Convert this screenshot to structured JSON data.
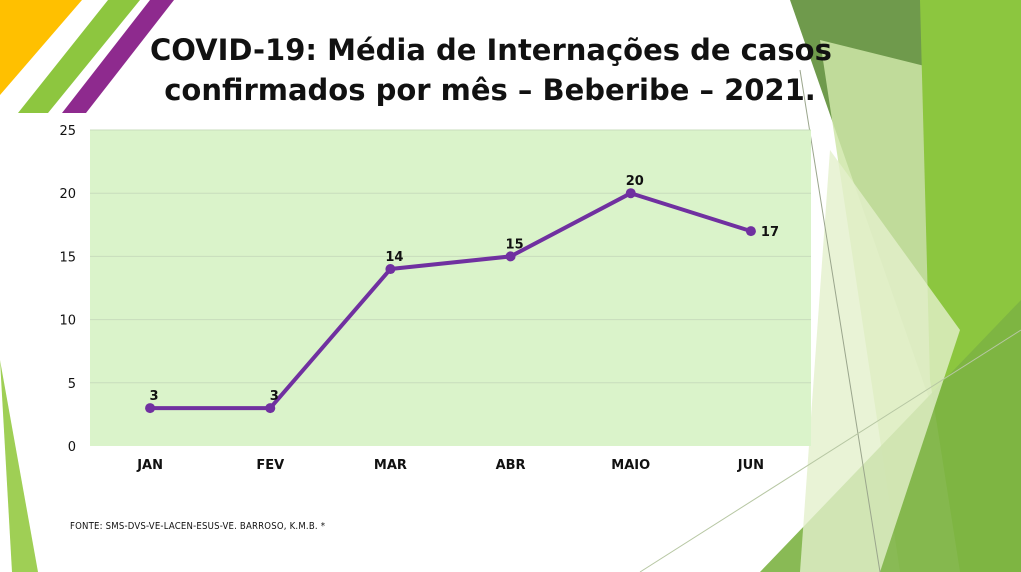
{
  "title": {
    "line1": "COVID-19: Média de Internações de casos",
    "line2": "confirmados por mês – Beberibe – 2021."
  },
  "source_note": "FONTE: SMS-DVS-VE-LACEN-ESUS-VE. BARROSO, K.M.B. *",
  "colors": {
    "plot_background": "#daf3ca",
    "line": "#7030a0",
    "gridline": "#c8dcbc",
    "deco_yellow": "#ffc000",
    "deco_green": "#8dc63f",
    "deco_dark_green": "#5e9a2e",
    "deco_purple": "#8e2a8e"
  },
  "chart_data": {
    "type": "line",
    "categories": [
      "JAN",
      "FEV",
      "MAR",
      "ABR",
      "MAIO",
      "JUN"
    ],
    "series": [
      {
        "values": [
          3,
          3,
          14,
          15,
          20,
          17
        ]
      }
    ],
    "data_labels": [
      "3",
      "3",
      "14",
      "15",
      "20",
      "17"
    ],
    "ylim": [
      0,
      25
    ],
    "yticks": [
      "0",
      "5",
      "10",
      "15",
      "20",
      "25"
    ],
    "grid": true,
    "legend": "none",
    "title": "",
    "xlabel": "",
    "ylabel": ""
  }
}
